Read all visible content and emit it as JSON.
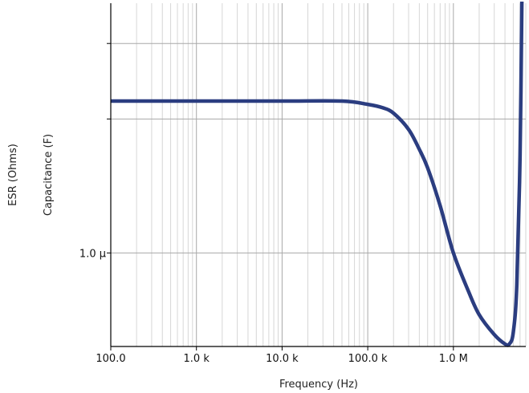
{
  "chart_data": {
    "type": "line",
    "title": "",
    "xlabel": "Frequency (Hz)",
    "ylabel": "Capacitance (F)",
    "ylabel2": "ESR (Ohms)",
    "x_scale": "log",
    "y_scale": "log",
    "xlim": [
      100,
      7000000
    ],
    "ylim": [
      3.5e-07,
      1.65e-05
    ],
    "grid": true,
    "x_ticks": [
      {
        "value": 100,
        "label": "100.0"
      },
      {
        "value": 1000,
        "label": "1.0 k"
      },
      {
        "value": 10000,
        "label": "10.0 k"
      },
      {
        "value": 100000,
        "label": "100.0 k"
      },
      {
        "value": 1000000,
        "label": "1.0 M"
      }
    ],
    "y_ticks": [
      {
        "value": 1e-06,
        "label": "1.0 µ"
      }
    ],
    "y_extra_gridlines": [
      4.5e-06,
      1.05e-05
    ],
    "series": [
      {
        "color": "#2b3d80",
        "x": [
          100,
          1000,
          10000,
          50000,
          100000,
          150000,
          200000,
          300000,
          400000,
          500000,
          700000,
          1000000,
          1500000,
          2000000,
          3000000,
          4000000,
          4500000,
          5000000,
          5500000,
          6000000,
          6300000
        ],
        "y": [
          5.5e-06,
          5.5e-06,
          5.5e-06,
          5.5e-06,
          5.3e-06,
          5.1e-06,
          4.8e-06,
          4e-06,
          3.2e-06,
          2.6e-06,
          1.7e-06,
          1e-06,
          6.5e-07,
          5e-07,
          4e-07,
          3.6e-07,
          3.6e-07,
          4.1e-07,
          7e-07,
          3e-06,
          1.7e-05
        ]
      }
    ]
  }
}
